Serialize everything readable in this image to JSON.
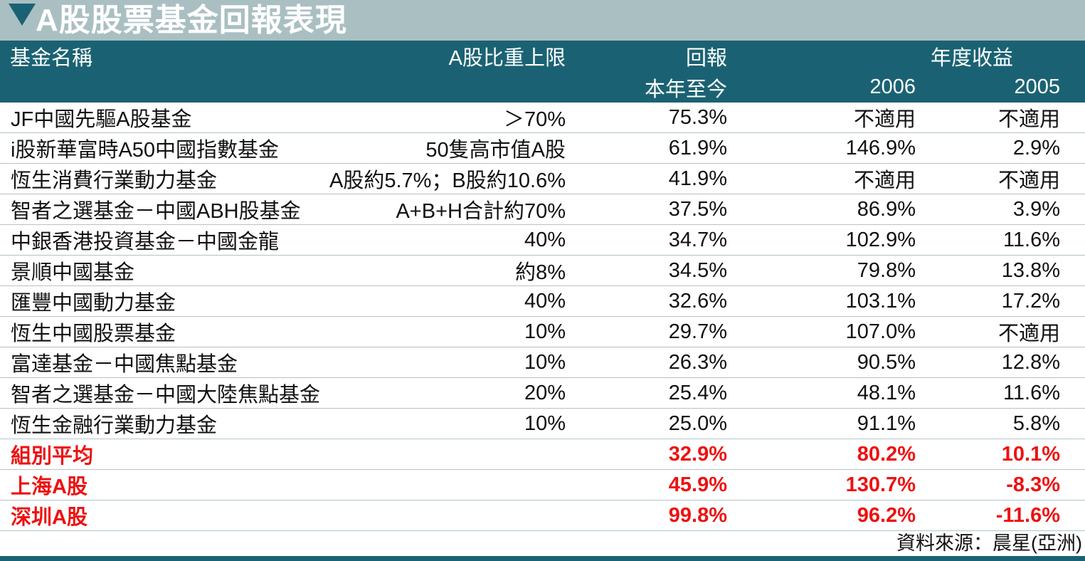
{
  "page": {
    "title": "A股股票基金回報表現",
    "source_note": "資料來源：晨星(亞洲)"
  },
  "colors": {
    "dark_teal": "#1a6273",
    "light_teal": "#aabfc2",
    "highlight_red": "#ee1111",
    "row_divider": "#b5c3c5",
    "header_text": "#ffffff",
    "body_text": "#111111"
  },
  "chart_data": {
    "type": "table",
    "title": "A股股票基金回報表現",
    "column_groups": {
      "return": "回報",
      "annual": "年度收益"
    },
    "columns": [
      "基金名稱",
      "A股比重上限",
      "本年至今",
      "2006",
      "2005"
    ],
    "rows": [
      {
        "name": "JF中國先驅A股基金",
        "limit": "＞70%",
        "ytd": "75.3%",
        "y2006": "不適用",
        "y2005": "不適用",
        "emphasis": false
      },
      {
        "name": "i股新華富時A50中國指數基金",
        "limit": "50隻高市值A股",
        "ytd": "61.9%",
        "y2006": "146.9%",
        "y2005": "2.9%",
        "emphasis": false
      },
      {
        "name": "恆生消費行業動力基金",
        "limit": "A股約5.7%；B股約10.6%",
        "ytd": "41.9%",
        "y2006": "不適用",
        "y2005": "不適用",
        "emphasis": false
      },
      {
        "name": "智者之選基金－中國ABH股基金",
        "limit": "A+B+H合計約70%",
        "ytd": "37.5%",
        "y2006": "86.9%",
        "y2005": "3.9%",
        "emphasis": false
      },
      {
        "name": "中銀香港投資基金－中國金龍",
        "limit": "40%",
        "ytd": "34.7%",
        "y2006": "102.9%",
        "y2005": "11.6%",
        "emphasis": false
      },
      {
        "name": "景順中國基金",
        "limit": "約8%",
        "ytd": "34.5%",
        "y2006": "79.8%",
        "y2005": "13.8%",
        "emphasis": false
      },
      {
        "name": "匯豐中國動力基金",
        "limit": "40%",
        "ytd": "32.6%",
        "y2006": "103.1%",
        "y2005": "17.2%",
        "emphasis": false
      },
      {
        "name": "恆生中國股票基金",
        "limit": "10%",
        "ytd": "29.7%",
        "y2006": "107.0%",
        "y2005": "不適用",
        "emphasis": false
      },
      {
        "name": "富達基金－中國焦點基金",
        "limit": "10%",
        "ytd": "26.3%",
        "y2006": "90.5%",
        "y2005": "12.8%",
        "emphasis": false
      },
      {
        "name": "智者之選基金－中國大陸焦點基金",
        "limit": "20%",
        "ytd": "25.4%",
        "y2006": "48.1%",
        "y2005": "11.6%",
        "emphasis": false
      },
      {
        "name": "恆生金融行業動力基金",
        "limit": "10%",
        "ytd": "25.0%",
        "y2006": "91.1%",
        "y2005": "5.8%",
        "emphasis": false
      },
      {
        "name": "組別平均",
        "limit": "",
        "ytd": "32.9%",
        "y2006": "80.2%",
        "y2005": "10.1%",
        "emphasis": true
      },
      {
        "name": "上海A股",
        "limit": "",
        "ytd": "45.9%",
        "y2006": "130.7%",
        "y2005": "-8.3%",
        "emphasis": true
      },
      {
        "name": "深圳A股",
        "limit": "",
        "ytd": "99.8%",
        "y2006": "96.2%",
        "y2005": "-11.6%",
        "emphasis": true
      }
    ],
    "source": "資料來源：晨星(亞洲)"
  }
}
